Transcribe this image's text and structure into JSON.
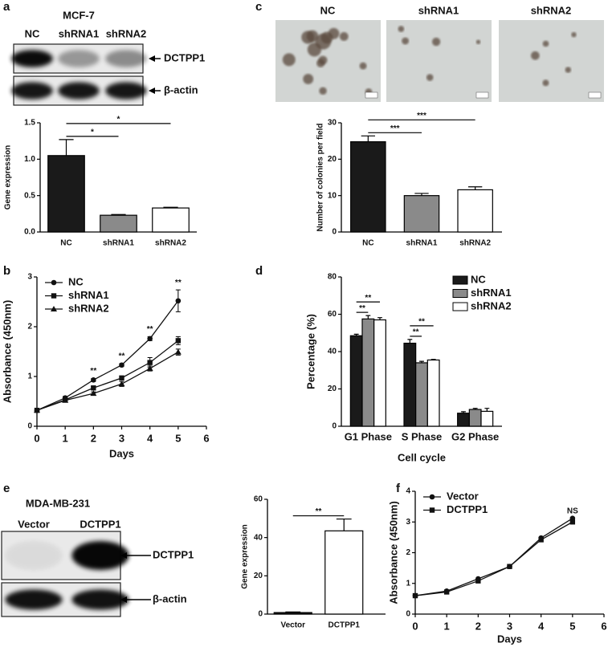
{
  "blots": [
    {
      "panel": "a",
      "title": "MCF-7",
      "lanes": [
        "NC",
        "shRNA1",
        "shRNA2"
      ],
      "bands": [
        "DCTPP1",
        "β-actin"
      ]
    },
    {
      "panel": "e",
      "title": "MDA-MB-231",
      "lanes": [
        "Vector",
        "DCTPP1"
      ],
      "bands": [
        "DCTPP1",
        "β-actin"
      ]
    }
  ],
  "photos": {
    "panel": "c",
    "lanes": [
      "NC",
      "shRNA1",
      "shRNA2"
    ]
  },
  "chart_data": [
    {
      "type": "bar",
      "ylabel": "Gene expression",
      "categories": [
        "NC",
        "shRNA1",
        "shRNA2"
      ],
      "values": [
        1.05,
        0.23,
        0.33
      ],
      "errors": [
        0.22,
        0.01,
        0.01
      ],
      "colors": [
        "#1a1a1a",
        "#8a8a8a",
        "#ffffff"
      ],
      "ylim": [
        0,
        1.5
      ],
      "yticks": [
        {
          "value": 0,
          "label": "0.0"
        },
        0.5,
        {
          "value": 1,
          "label": "1.0"
        },
        1.5
      ],
      "significance": [
        {
          "text": "*",
          "pair": [
            "NC",
            "shRNA1"
          ]
        },
        {
          "text": "*",
          "pair": [
            "NC",
            "shRNA2"
          ]
        }
      ]
    },
    {
      "type": "line",
      "panel": "b",
      "xlabel": "Days",
      "ylabel": "Absorbance (450nm)",
      "x": [
        0,
        1,
        2,
        3,
        4,
        5
      ],
      "series": [
        {
          "name": "NC",
          "marker": "circle",
          "color": "#111111",
          "values": [
            0.32,
            0.57,
            0.93,
            1.23,
            1.76,
            2.52
          ],
          "errors": [
            0.03,
            0.03,
            0.03,
            0.03,
            0.04,
            0.22
          ]
        },
        {
          "name": "shRNA1",
          "marker": "square",
          "color": "#111111",
          "values": [
            0.32,
            0.53,
            0.77,
            0.97,
            1.28,
            1.72
          ],
          "errors": [
            0.03,
            0.03,
            0.03,
            0.04,
            0.1,
            0.08
          ]
        },
        {
          "name": "shRNA2",
          "marker": "triangle",
          "color": "#111111",
          "values": [
            0.32,
            0.52,
            0.66,
            0.85,
            1.16,
            1.49
          ],
          "errors": [
            0.03,
            0.03,
            0.03,
            0.05,
            0.05,
            0.06
          ]
        }
      ],
      "xlim": [
        0,
        6
      ],
      "xticks": [
        0,
        1,
        2,
        3,
        4,
        5,
        6
      ],
      "ylim": [
        0,
        3
      ],
      "yticks": [
        0,
        1,
        2,
        3
      ],
      "legend": "upper left",
      "annotations": [
        {
          "text": "**",
          "x": 2
        },
        {
          "text": "**",
          "x": 3
        },
        {
          "text": "**",
          "x": 4
        },
        {
          "text": "**",
          "x": 5
        }
      ]
    },
    {
      "type": "bar",
      "ylabel": "Number of colonies per field",
      "categories": [
        "NC",
        "shRNA1",
        "shRNA2"
      ],
      "values": [
        24.8,
        10,
        11.6
      ],
      "errors": [
        1.6,
        0.6,
        0.8
      ],
      "colors": [
        "#1a1a1a",
        "#8a8a8a",
        "#ffffff"
      ],
      "ylim": [
        0,
        30
      ],
      "yticks": [
        0,
        10,
        20,
        30
      ],
      "significance": [
        {
          "text": "***",
          "pair": [
            "NC",
            "shRNA1"
          ]
        },
        {
          "text": "***",
          "pair": [
            "NC",
            "shRNA2"
          ]
        }
      ]
    },
    {
      "type": "bar",
      "panel": "d",
      "xlabel": "Cell cycle",
      "ylabel": "Percentage (%)",
      "categories": [
        "G1 Phase",
        "S Phase",
        "G2 Phase"
      ],
      "series": [
        {
          "name": "NC",
          "color": "#1a1a1a",
          "values": [
            48.5,
            44.5,
            7
          ],
          "errors": [
            0.8,
            2,
            0.8
          ]
        },
        {
          "name": "shRNA1",
          "color": "#8a8a8a",
          "values": [
            57.5,
            34,
            9
          ],
          "errors": [
            1.8,
            0.8,
            0.6
          ]
        },
        {
          "name": "shRNA2",
          "color": "#ffffff",
          "values": [
            57,
            35.5,
            8
          ],
          "errors": [
            1.2,
            0.3,
            1.6
          ]
        }
      ],
      "ylim": [
        0,
        80
      ],
      "yticks": [
        0,
        20,
        40,
        60,
        80
      ],
      "legend": "upper right",
      "significance": [
        {
          "text": "**",
          "category": "G1 Phase",
          "pair": [
            "NC",
            "shRNA1"
          ]
        },
        {
          "text": "**",
          "category": "G1 Phase",
          "pair": [
            "NC",
            "shRNA2"
          ]
        },
        {
          "text": "**",
          "category": "S Phase",
          "pair": [
            "NC",
            "shRNA1"
          ]
        },
        {
          "text": "**",
          "category": "S Phase",
          "pair": [
            "NC",
            "shRNA2"
          ]
        }
      ]
    },
    {
      "type": "bar",
      "ylabel": "Gene expression",
      "categories": [
        "Vector",
        "DCTPP1"
      ],
      "values": [
        0.8,
        43.5
      ],
      "errors": [
        0.3,
        6.2
      ],
      "colors": [
        "#1a1a1a",
        "#ffffff"
      ],
      "ylim": [
        0,
        60
      ],
      "yticks": [
        0,
        20,
        40,
        60
      ],
      "significance": [
        {
          "text": "**",
          "pair": [
            "Vector",
            "DCTPP1"
          ]
        }
      ]
    },
    {
      "type": "line",
      "panel": "f",
      "xlabel": "Days",
      "ylabel": "Absorbance (450nm)",
      "x": [
        0,
        1,
        2,
        3,
        4,
        5
      ],
      "series": [
        {
          "name": "Vector",
          "marker": "circle",
          "color": "#111111",
          "values": [
            0.6,
            0.75,
            1.15,
            1.55,
            2.48,
            3.12
          ]
        },
        {
          "name": "DCTPP1",
          "marker": "square",
          "color": "#111111",
          "values": [
            0.6,
            0.72,
            1.08,
            1.55,
            2.42,
            3.0
          ]
        }
      ],
      "xlim": [
        0,
        6
      ],
      "xticks": [
        0,
        1,
        2,
        3,
        4,
        5,
        6
      ],
      "ylim": [
        0,
        4
      ],
      "yticks": [
        0,
        1,
        2,
        3,
        4
      ],
      "legend": "upper left",
      "annotations": [
        {
          "text": "NS",
          "x": 5
        }
      ]
    }
  ]
}
